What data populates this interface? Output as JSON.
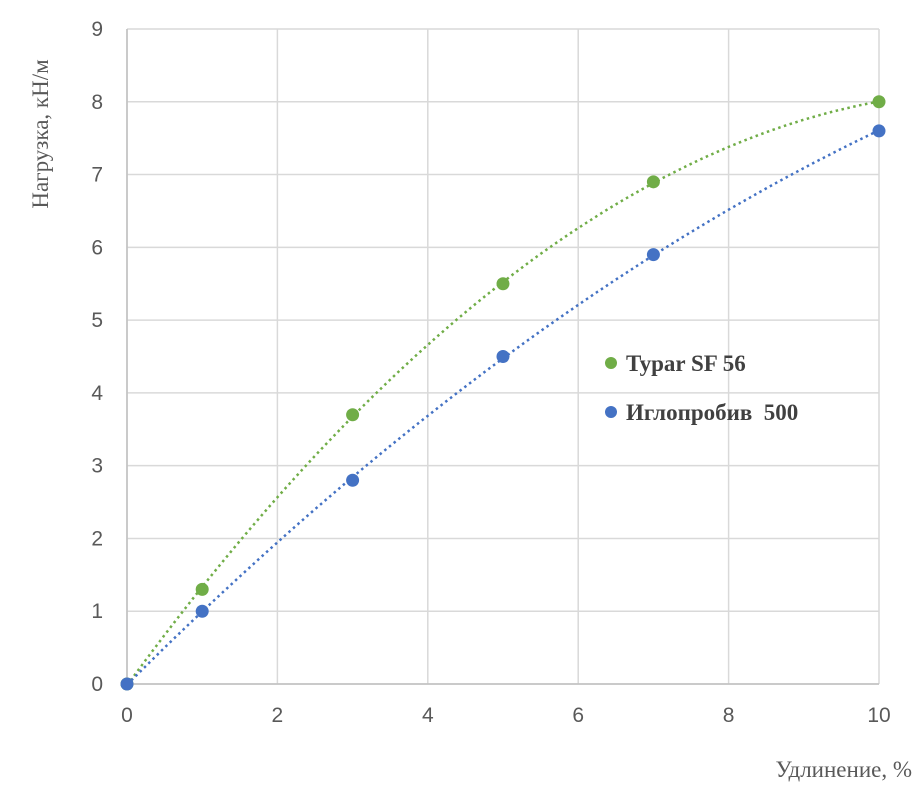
{
  "chart_data": {
    "type": "scatter",
    "xlabel": "Удлинение, %",
    "ylabel": "Нагрузка, кН/м",
    "xlim": [
      0,
      10
    ],
    "ylim": [
      0,
      9
    ],
    "x_ticks": [
      0,
      2,
      4,
      6,
      8,
      10
    ],
    "y_ticks": [
      0,
      1,
      2,
      3,
      4,
      5,
      6,
      7,
      8,
      9
    ],
    "grid": true,
    "legend_position": "right-center",
    "trendline": "polynomial, dotted",
    "series": [
      {
        "name": "Typar SF 56",
        "color": "#70ad47",
        "x": [
          0,
          1,
          3,
          5,
          7,
          10
        ],
        "y": [
          0,
          1.3,
          3.7,
          5.5,
          6.9,
          8.0
        ]
      },
      {
        "name": "Иглопробив  500",
        "color": "#4472c4",
        "x": [
          0,
          1,
          3,
          5,
          7,
          10
        ],
        "y": [
          0,
          1.0,
          2.8,
          4.5,
          5.9,
          7.6
        ]
      }
    ]
  }
}
